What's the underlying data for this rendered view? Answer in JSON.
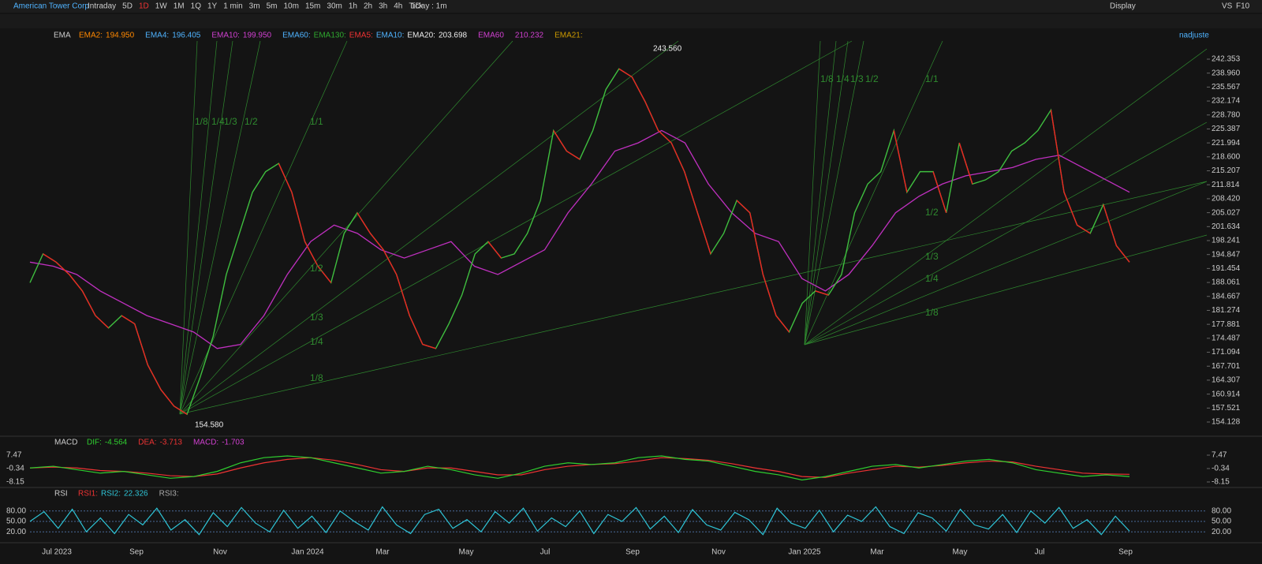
{
  "toolbar": {
    "symbol": "American Tower Corp",
    "periods": [
      "Intraday",
      "5D",
      "1D",
      "1W",
      "1M",
      "1Q",
      "1Y",
      "1 min",
      "3m",
      "5m",
      "10m",
      "15m",
      "30m",
      "1h",
      "2h",
      "3h",
      "4h",
      "Tick"
    ],
    "range": "1Day : 1m",
    "display": "Display",
    "vs": "VS",
    "f10": "F10"
  },
  "ema_row": {
    "name": "EMA",
    "items": [
      "EMA2:",
      "194.950",
      "EMA4:",
      "196.405",
      "EMA10:",
      "199.950",
      "EMA60:",
      "EMA130:",
      "EMA5:",
      "EMA10:",
      "EMA20:",
      "203.698",
      "EMA60",
      "210.232",
      "EMA21:"
    ],
    "adjust": "nadjuste"
  },
  "main": {
    "ylim": [
      154.128,
      242.353
    ],
    "yticks": [
      {
        "value": 242.353,
        "label": "242.353"
      },
      {
        "value": 238.96,
        "label": "238.960"
      },
      {
        "value": 235.567,
        "label": "235.567"
      },
      {
        "value": 232.174,
        "label": "232.174"
      },
      {
        "value": 228.78,
        "label": "228.780"
      },
      {
        "value": 225.387,
        "label": "225.387"
      },
      {
        "value": 221.994,
        "label": "221.994"
      },
      {
        "value": 218.6,
        "label": "218.600"
      },
      {
        "value": 215.207,
        "label": "215.207"
      },
      {
        "value": 211.814,
        "label": "211.814"
      },
      {
        "value": 208.42,
        "label": "208.420"
      },
      {
        "value": 205.027,
        "label": "205.027"
      },
      {
        "value": 201.634,
        "label": "201.634"
      },
      {
        "value": 198.241,
        "label": "198.241"
      },
      {
        "value": 194.847,
        "label": "194.847"
      },
      {
        "value": 191.454,
        "label": "191.454"
      },
      {
        "value": 188.061,
        "label": "188.061"
      },
      {
        "value": 184.667,
        "label": "184.667"
      },
      {
        "value": 181.274,
        "label": "181.274"
      },
      {
        "value": 177.881,
        "label": "177.881"
      },
      {
        "value": 174.487,
        "label": "174.487"
      },
      {
        "value": 171.094,
        "label": "171.094"
      },
      {
        "value": 167.701,
        "label": "167.701"
      },
      {
        "value": 164.307,
        "label": "164.307"
      },
      {
        "value": 160.914,
        "label": "160.914"
      },
      {
        "value": 157.521,
        "label": "157.521"
      },
      {
        "value": 154.128,
        "label": "154.128"
      }
    ],
    "close": [
      188,
      195,
      193,
      190,
      186,
      180,
      177,
      180,
      178,
      168,
      162,
      158,
      156,
      165,
      175,
      190,
      200,
      210,
      215,
      217,
      210,
      198,
      192,
      188,
      200,
      205,
      200,
      196,
      190,
      180,
      173,
      172,
      178,
      185,
      195,
      198,
      194,
      195,
      200,
      208,
      225,
      220,
      218,
      225,
      235,
      240,
      238,
      232,
      225,
      222,
      215,
      205,
      195,
      200,
      208,
      205,
      190,
      180,
      176,
      183,
      186,
      185,
      190,
      205,
      212,
      215,
      225,
      210,
      215,
      215,
      205,
      222,
      212,
      213,
      215,
      220,
      222,
      225,
      230,
      210,
      202,
      200,
      207,
      197,
      193
    ],
    "ema60": [
      193,
      192,
      190,
      186,
      183,
      180,
      178,
      176,
      172,
      173,
      180,
      190,
      198,
      202,
      200,
      196,
      194,
      196,
      198,
      192,
      190,
      193,
      196,
      205,
      212,
      220,
      222,
      225,
      222,
      212,
      205,
      200,
      198,
      189,
      186,
      190,
      197,
      205,
      209,
      212,
      214,
      215,
      216,
      218,
      219,
      216,
      213,
      210
    ],
    "high": "243.560",
    "low": "154.580",
    "fans": [
      "1/8",
      "1/4",
      "1/3",
      "1/2",
      "1/1",
      "1/2",
      "1/3",
      "1/4",
      "1/8",
      "1/8",
      "1/4",
      "1/3",
      "1/2",
      "1/1",
      "1/2",
      "1/3",
      "1/4",
      "1/8"
    ]
  },
  "macd": {
    "name": "MACD",
    "items": [
      "DIF:",
      "-4.564",
      "DEA:",
      "-3.713",
      "MACD:",
      "-1.703"
    ],
    "ylim": [
      -8.15,
      7.47
    ],
    "yticks": [
      7.47,
      -0.34,
      -8.15
    ],
    "dif": [
      0,
      1,
      -1,
      -3,
      -2,
      -4,
      -6,
      -5,
      -2,
      3,
      6,
      7,
      6,
      3,
      0,
      -3,
      -2,
      1,
      -1,
      -4,
      -6,
      -3,
      1,
      3,
      2,
      3,
      6,
      7,
      5,
      4,
      1,
      -2,
      -4,
      -7,
      -5,
      -2,
      1,
      2,
      0,
      2,
      4,
      5,
      3,
      -1,
      -3,
      -5,
      -4,
      -5
    ],
    "dea": [
      0,
      0.5,
      0,
      -1.5,
      -2,
      -3,
      -4.5,
      -5,
      -3.5,
      0,
      3,
      5,
      6,
      4.5,
      2,
      -1,
      -2,
      0,
      0,
      -2,
      -4,
      -4,
      -1,
      1,
      2,
      2.5,
      4,
      6,
      5.5,
      4.5,
      2.5,
      0,
      -2,
      -5,
      -5.5,
      -3,
      -1,
      1,
      0.5,
      1.5,
      3,
      4,
      3.5,
      1,
      -1,
      -3,
      -3.5,
      -3.7
    ]
  },
  "rsi": {
    "name": "RSI",
    "items": [
      "RSI1:",
      "RSI2:",
      "22.326",
      "RSI3:"
    ],
    "ylim": [
      0,
      100
    ],
    "yticks": [
      {
        "value": 80,
        "label": "80.00"
      },
      {
        "value": 50,
        "label": "50.00"
      },
      {
        "value": 20,
        "label": "20.00"
      }
    ],
    "rsi2": [
      50,
      78,
      30,
      85,
      20,
      60,
      15,
      70,
      40,
      88,
      25,
      55,
      12,
      75,
      35,
      90,
      45,
      20,
      82,
      30,
      65,
      18,
      80,
      50,
      25,
      92,
      40,
      15,
      70,
      85,
      30,
      55,
      20,
      78,
      45,
      88,
      22,
      60,
      35,
      80,
      15,
      70,
      50,
      90,
      28,
      65,
      18,
      84,
      40,
      25,
      76,
      55,
      12,
      88,
      45,
      30,
      82,
      20,
      68,
      50,
      92,
      35,
      15,
      75,
      60,
      22,
      85,
      40,
      28,
      70,
      18,
      80,
      45,
      90,
      30,
      55,
      12,
      65,
      22
    ],
    "xlabels": [
      "Jul 2023",
      "Sep",
      "Nov",
      "Jan 2024",
      "Mar",
      "May",
      "Jul",
      "Sep",
      "Nov",
      "Jan 2025",
      "Mar",
      "May",
      "Jul",
      "Sep"
    ]
  }
}
